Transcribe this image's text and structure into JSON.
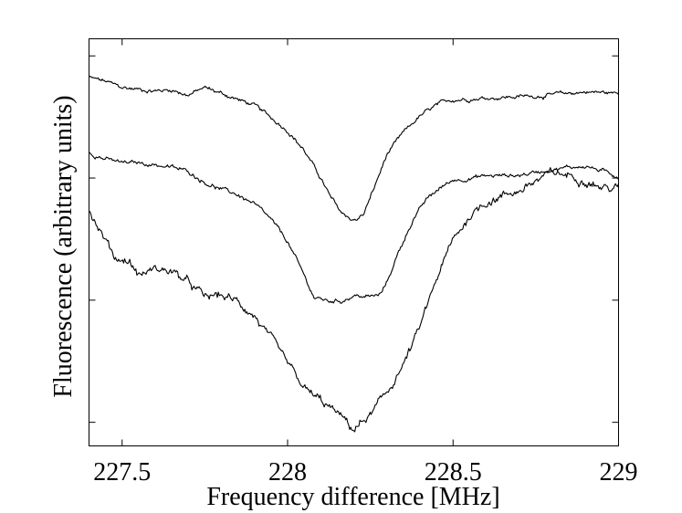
{
  "chart_data": {
    "type": "line",
    "title": "",
    "xlabel": "Frequency difference [MHz]",
    "ylabel": "Fluorescence (arbitrary units)",
    "xlim": [
      227.4,
      229.0
    ],
    "ylim": [
      0.0,
      1.0
    ],
    "grid": false,
    "legend": "none",
    "x_ticks": [
      227.5,
      228.0,
      228.5,
      229.0
    ],
    "x_tick_labels": [
      "227.5",
      "228",
      "228.5",
      "229"
    ],
    "y_ticks": [
      0.058,
      0.358,
      0.658,
      0.958
    ],
    "y_tick_labels": [
      "",
      "",
      "",
      ""
    ],
    "series": [
      {
        "points": [
          [
            227.4,
            0.905
          ],
          [
            227.45,
            0.895
          ],
          [
            227.5,
            0.88
          ],
          [
            227.55,
            0.876
          ],
          [
            227.6,
            0.872
          ],
          [
            227.65,
            0.875
          ],
          [
            227.7,
            0.862
          ],
          [
            227.75,
            0.88
          ],
          [
            227.8,
            0.866
          ],
          [
            227.85,
            0.851
          ],
          [
            227.9,
            0.836
          ],
          [
            227.95,
            0.806
          ],
          [
            228.0,
            0.776
          ],
          [
            228.05,
            0.726
          ],
          [
            228.1,
            0.658
          ],
          [
            228.13,
            0.61
          ],
          [
            228.16,
            0.575
          ],
          [
            228.19,
            0.558
          ],
          [
            228.21,
            0.555
          ],
          [
            228.23,
            0.57
          ],
          [
            228.26,
            0.63
          ],
          [
            228.3,
            0.715
          ],
          [
            228.35,
            0.769
          ],
          [
            228.4,
            0.81
          ],
          [
            228.45,
            0.836
          ],
          [
            228.5,
            0.851
          ],
          [
            228.6,
            0.855
          ],
          [
            228.7,
            0.858
          ],
          [
            228.8,
            0.862
          ],
          [
            228.9,
            0.87
          ],
          [
            229.0,
            0.866
          ]
        ]
      },
      {
        "points": [
          [
            227.4,
            0.721
          ],
          [
            227.45,
            0.705
          ],
          [
            227.5,
            0.695
          ],
          [
            227.55,
            0.695
          ],
          [
            227.6,
            0.691
          ],
          [
            227.65,
            0.684
          ],
          [
            227.7,
            0.674
          ],
          [
            227.75,
            0.648
          ],
          [
            227.8,
            0.63
          ],
          [
            227.85,
            0.617
          ],
          [
            227.9,
            0.593
          ],
          [
            227.95,
            0.555
          ],
          [
            228.0,
            0.502
          ],
          [
            228.05,
            0.418
          ],
          [
            228.08,
            0.365
          ],
          [
            228.12,
            0.356
          ],
          [
            228.16,
            0.356
          ],
          [
            228.2,
            0.369
          ],
          [
            228.24,
            0.366
          ],
          [
            228.28,
            0.37
          ],
          [
            228.3,
            0.403
          ],
          [
            228.34,
            0.485
          ],
          [
            228.38,
            0.558
          ],
          [
            228.42,
            0.605
          ],
          [
            228.46,
            0.633
          ],
          [
            228.5,
            0.653
          ],
          [
            228.6,
            0.663
          ],
          [
            228.7,
            0.665
          ],
          [
            228.8,
            0.68
          ],
          [
            228.9,
            0.688
          ],
          [
            229.0,
            0.662
          ]
        ]
      },
      {
        "points": [
          [
            227.4,
            0.578
          ],
          [
            227.44,
            0.52
          ],
          [
            227.48,
            0.462
          ],
          [
            227.52,
            0.455
          ],
          [
            227.55,
            0.42
          ],
          [
            227.6,
            0.435
          ],
          [
            227.65,
            0.43
          ],
          [
            227.7,
            0.4
          ],
          [
            227.75,
            0.365
          ],
          [
            227.8,
            0.37
          ],
          [
            227.85,
            0.353
          ],
          [
            227.9,
            0.32
          ],
          [
            227.95,
            0.26
          ],
          [
            228.0,
            0.2
          ],
          [
            228.05,
            0.14
          ],
          [
            228.1,
            0.11
          ],
          [
            228.15,
            0.08
          ],
          [
            228.2,
            0.04
          ],
          [
            228.25,
            0.075
          ],
          [
            228.3,
            0.13
          ],
          [
            228.35,
            0.2
          ],
          [
            228.4,
            0.29
          ],
          [
            228.45,
            0.41
          ],
          [
            228.5,
            0.505
          ],
          [
            228.55,
            0.565
          ],
          [
            228.6,
            0.6
          ],
          [
            228.65,
            0.615
          ],
          [
            228.7,
            0.628
          ],
          [
            228.75,
            0.65
          ],
          [
            228.8,
            0.67
          ],
          [
            228.85,
            0.665
          ],
          [
            228.9,
            0.655
          ],
          [
            228.95,
            0.635
          ],
          [
            229.0,
            0.633
          ]
        ]
      }
    ]
  }
}
